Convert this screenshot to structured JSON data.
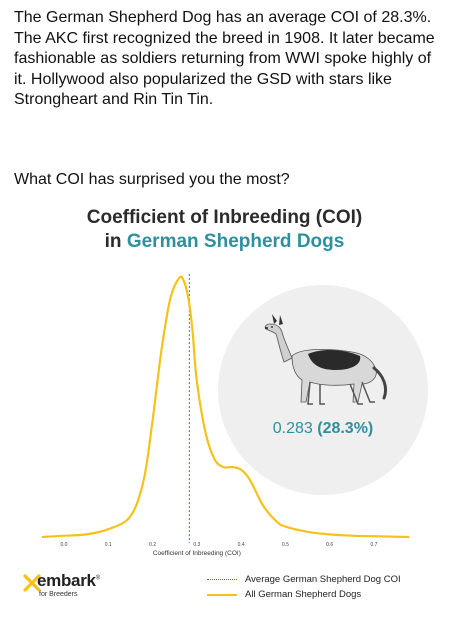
{
  "intro_text": "The German Shepherd Dog has an average COI of 28.3%. The AKC first recognized the breed in 1908. It later became fashionable as soldiers returning from WWI spoke highly of it. Hollywood also popularized the GSD with stars like Strongheart and Rin Tin Tin.",
  "question_text": "What COI has surprised you the most?",
  "chart_title_line1": "Coefficient of Inbreeding (COI)",
  "chart_title_in": "in ",
  "chart_title_breed": "German Shepherd Dogs",
  "coi_value": "0.283",
  "coi_percent": "(28.3%)",
  "logo": {
    "word": "embark",
    "trademark": "®",
    "sub": "for Breeders"
  },
  "colors": {
    "accent": "#2f8f9e",
    "curve": "#f4c21b",
    "mean_line": "#4b6bb0",
    "circle": "#efefef"
  },
  "chart_data": {
    "type": "line",
    "title": "Coefficient of Inbreeding (COI) in German Shepherd Dogs",
    "xlabel": "Coefficient of Inbreeding (COI)",
    "ylabel": "",
    "xlim": [
      -0.05,
      0.78
    ],
    "x_ticks": [
      "0.0",
      "0.1",
      "0.2",
      "0.3",
      "0.4",
      "0.5",
      "0.6",
      "0.7"
    ],
    "grid": false,
    "legend_position": "bottom-right",
    "series": [
      {
        "name": "All German Shepherd Dogs",
        "style": "solid",
        "x": [
          -0.05,
          0.0,
          0.05,
          0.1,
          0.15,
          0.18,
          0.2,
          0.22,
          0.24,
          0.26,
          0.27,
          0.28,
          0.29,
          0.3,
          0.32,
          0.34,
          0.36,
          0.38,
          0.4,
          0.42,
          0.45,
          0.48,
          0.5,
          0.55,
          0.6,
          0.65,
          0.7,
          0.78
        ],
        "y": [
          0.0,
          0.005,
          0.01,
          0.03,
          0.08,
          0.22,
          0.45,
          0.72,
          0.92,
          1.0,
          0.99,
          0.93,
          0.8,
          0.6,
          0.4,
          0.3,
          0.27,
          0.27,
          0.26,
          0.22,
          0.12,
          0.06,
          0.04,
          0.02,
          0.01,
          0.005,
          0.003,
          0.0
        ]
      }
    ],
    "reference_lines": [
      {
        "name": "Average German Shepherd Dog COI",
        "x": 0.283,
        "style": "dotted"
      }
    ]
  }
}
